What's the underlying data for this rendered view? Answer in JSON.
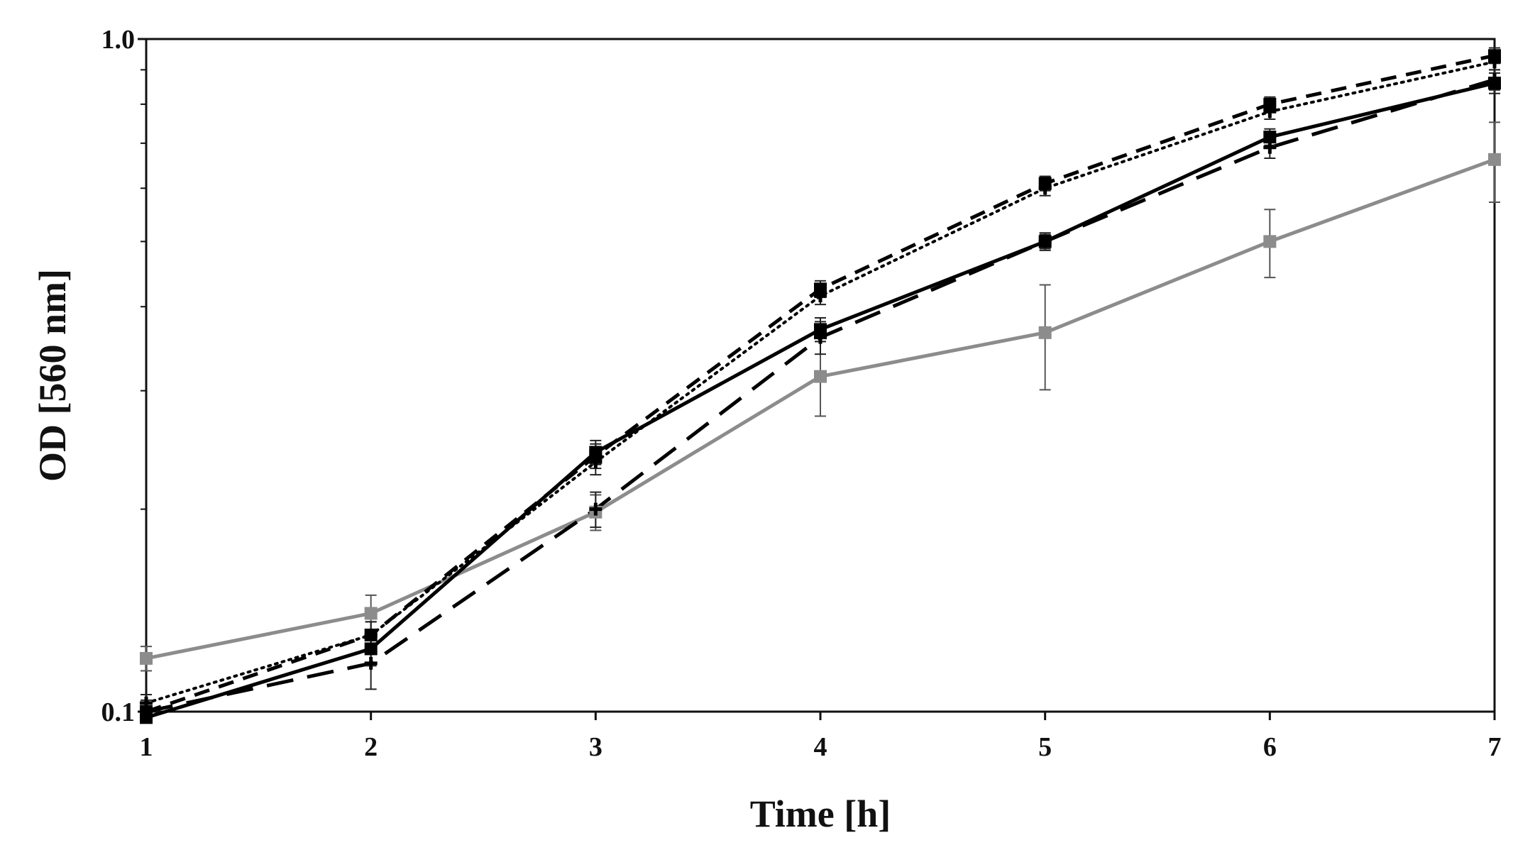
{
  "chart_data": {
    "type": "line",
    "title": "",
    "xlabel": "Time [h]",
    "ylabel": "OD [560 nm]",
    "yscale": "log",
    "xlim": [
      1,
      7
    ],
    "ylim": [
      0.1,
      1.0
    ],
    "x": [
      1,
      2,
      3,
      4,
      5,
      6,
      7
    ],
    "x_tick_labels": [
      "1",
      "2",
      "3",
      "4",
      "5",
      "6",
      "7"
    ],
    "y_tick_labels": [
      {
        "value": 0.1,
        "label": "0.1"
      },
      {
        "value": 1.0,
        "label": "1.0"
      }
    ],
    "y_minor_ticks": [
      0.2,
      0.3,
      0.4,
      0.5,
      0.6,
      0.7,
      0.8,
      0.9
    ],
    "legend": "none",
    "grid": false,
    "series": [
      {
        "name": "grey-solid",
        "color": "#8c8c8c",
        "dash": "solid",
        "marker": "square",
        "values": [
          0.12,
          0.14,
          0.198,
          0.315,
          0.366,
          0.5,
          0.662
        ],
        "errors": [
          0.005,
          0.009,
          0.012,
          0.04,
          0.065,
          0.058,
          0.09
        ]
      },
      {
        "name": "black-long-dash",
        "color": "#000000",
        "dash": "long-dash",
        "marker": "plus",
        "values": [
          0.1,
          0.118,
          0.2,
          0.36,
          0.5,
          0.69,
          0.87
        ],
        "errors": [
          0.004,
          0.01,
          0.012,
          0.02,
          0.012,
          0.025,
          0.03
        ]
      },
      {
        "name": "black-dotted",
        "color": "#000000",
        "dash": "dotted",
        "marker": "plus",
        "values": [
          0.103,
          0.13,
          0.235,
          0.415,
          0.6,
          0.78,
          0.925
        ],
        "errors": [
          0.003,
          0.006,
          0.01,
          0.012,
          0.015,
          0.02,
          0.025
        ]
      },
      {
        "name": "black-short-dash",
        "color": "#000000",
        "dash": "short-dash",
        "marker": "square",
        "values": [
          0.1,
          0.13,
          0.24,
          0.425,
          0.61,
          0.8,
          0.945
        ],
        "errors": [
          0.003,
          0.006,
          0.01,
          0.012,
          0.015,
          0.02,
          0.025
        ]
      },
      {
        "name": "black-solid",
        "color": "#000000",
        "dash": "solid",
        "marker": "square",
        "values": [
          0.098,
          0.124,
          0.243,
          0.37,
          0.5,
          0.715,
          0.86
        ],
        "errors": [
          0.004,
          0.007,
          0.01,
          0.015,
          0.015,
          0.02,
          0.03
        ]
      }
    ]
  }
}
